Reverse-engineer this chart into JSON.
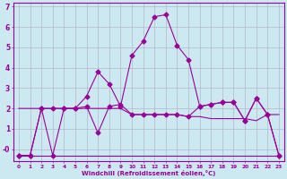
{
  "xlabel": "Windchill (Refroidissement éolien,°C)",
  "background_color": "#cce8f0",
  "grid_color": "#b0b8cc",
  "line_color": "#990099",
  "x_ticks": [
    0,
    1,
    2,
    3,
    4,
    5,
    6,
    7,
    8,
    9,
    10,
    11,
    12,
    13,
    14,
    15,
    16,
    17,
    18,
    19,
    20,
    21,
    22,
    23
  ],
  "ylim": [
    -0.6,
    7.2
  ],
  "xlim": [
    -0.5,
    23.5
  ],
  "line1_x": [
    0,
    1,
    2,
    3,
    4,
    5,
    6,
    7,
    8,
    9,
    10,
    11,
    12,
    13,
    14,
    15,
    16,
    17,
    18,
    19,
    20,
    21,
    22,
    23
  ],
  "line1_y": [
    -0.3,
    -0.3,
    2.0,
    -0.3,
    2.0,
    2.0,
    2.1,
    0.8,
    2.1,
    2.2,
    1.7,
    1.7,
    1.7,
    1.7,
    1.7,
    1.6,
    2.1,
    2.2,
    2.3,
    2.3,
    1.4,
    2.5,
    1.7,
    -0.3
  ],
  "line2_x": [
    0,
    1,
    2,
    3,
    4,
    5,
    6,
    7,
    8,
    9,
    10,
    11,
    12,
    13,
    14,
    15,
    16,
    17,
    18,
    19,
    20,
    21,
    22,
    23
  ],
  "line2_y": [
    -0.3,
    -0.3,
    2.0,
    2.0,
    2.0,
    2.0,
    2.6,
    3.8,
    3.2,
    2.1,
    4.6,
    5.3,
    6.5,
    6.6,
    5.1,
    4.4,
    2.1,
    2.2,
    2.3,
    2.3,
    1.4,
    2.5,
    1.7,
    -0.3
  ],
  "line3_x": [
    0,
    1,
    2,
    3,
    4,
    5,
    6,
    7,
    8,
    9,
    10,
    11,
    12,
    13,
    14,
    15,
    16,
    17,
    18,
    19,
    20,
    21,
    22,
    23
  ],
  "line3_y": [
    -0.3,
    -0.3,
    -0.3,
    -0.3,
    -0.3,
    -0.3,
    -0.3,
    -0.3,
    -0.3,
    -0.3,
    -0.3,
    -0.3,
    -0.3,
    -0.3,
    -0.3,
    -0.3,
    -0.3,
    -0.3,
    -0.3,
    -0.3,
    -0.3,
    -0.3,
    -0.3,
    -0.3
  ],
  "flat_x": [
    0,
    1,
    2,
    3,
    4,
    5,
    6,
    7,
    8,
    9,
    10,
    11,
    12,
    13,
    14,
    15,
    16,
    17,
    18,
    19,
    20,
    21,
    22,
    23
  ],
  "flat_y": [
    2.0,
    2.0,
    2.0,
    2.0,
    2.0,
    2.0,
    2.0,
    2.0,
    2.0,
    2.0,
    1.7,
    1.7,
    1.7,
    1.7,
    1.7,
    1.6,
    1.6,
    1.5,
    1.5,
    1.5,
    1.5,
    1.4,
    1.7,
    1.7
  ],
  "marker": "D",
  "marker_size": 2.5,
  "yticks": [
    0,
    1,
    2,
    3,
    4,
    5,
    6,
    7
  ],
  "ytick_labels": [
    "-0",
    "1",
    "2",
    "3",
    "4",
    "5",
    "6",
    "7"
  ]
}
